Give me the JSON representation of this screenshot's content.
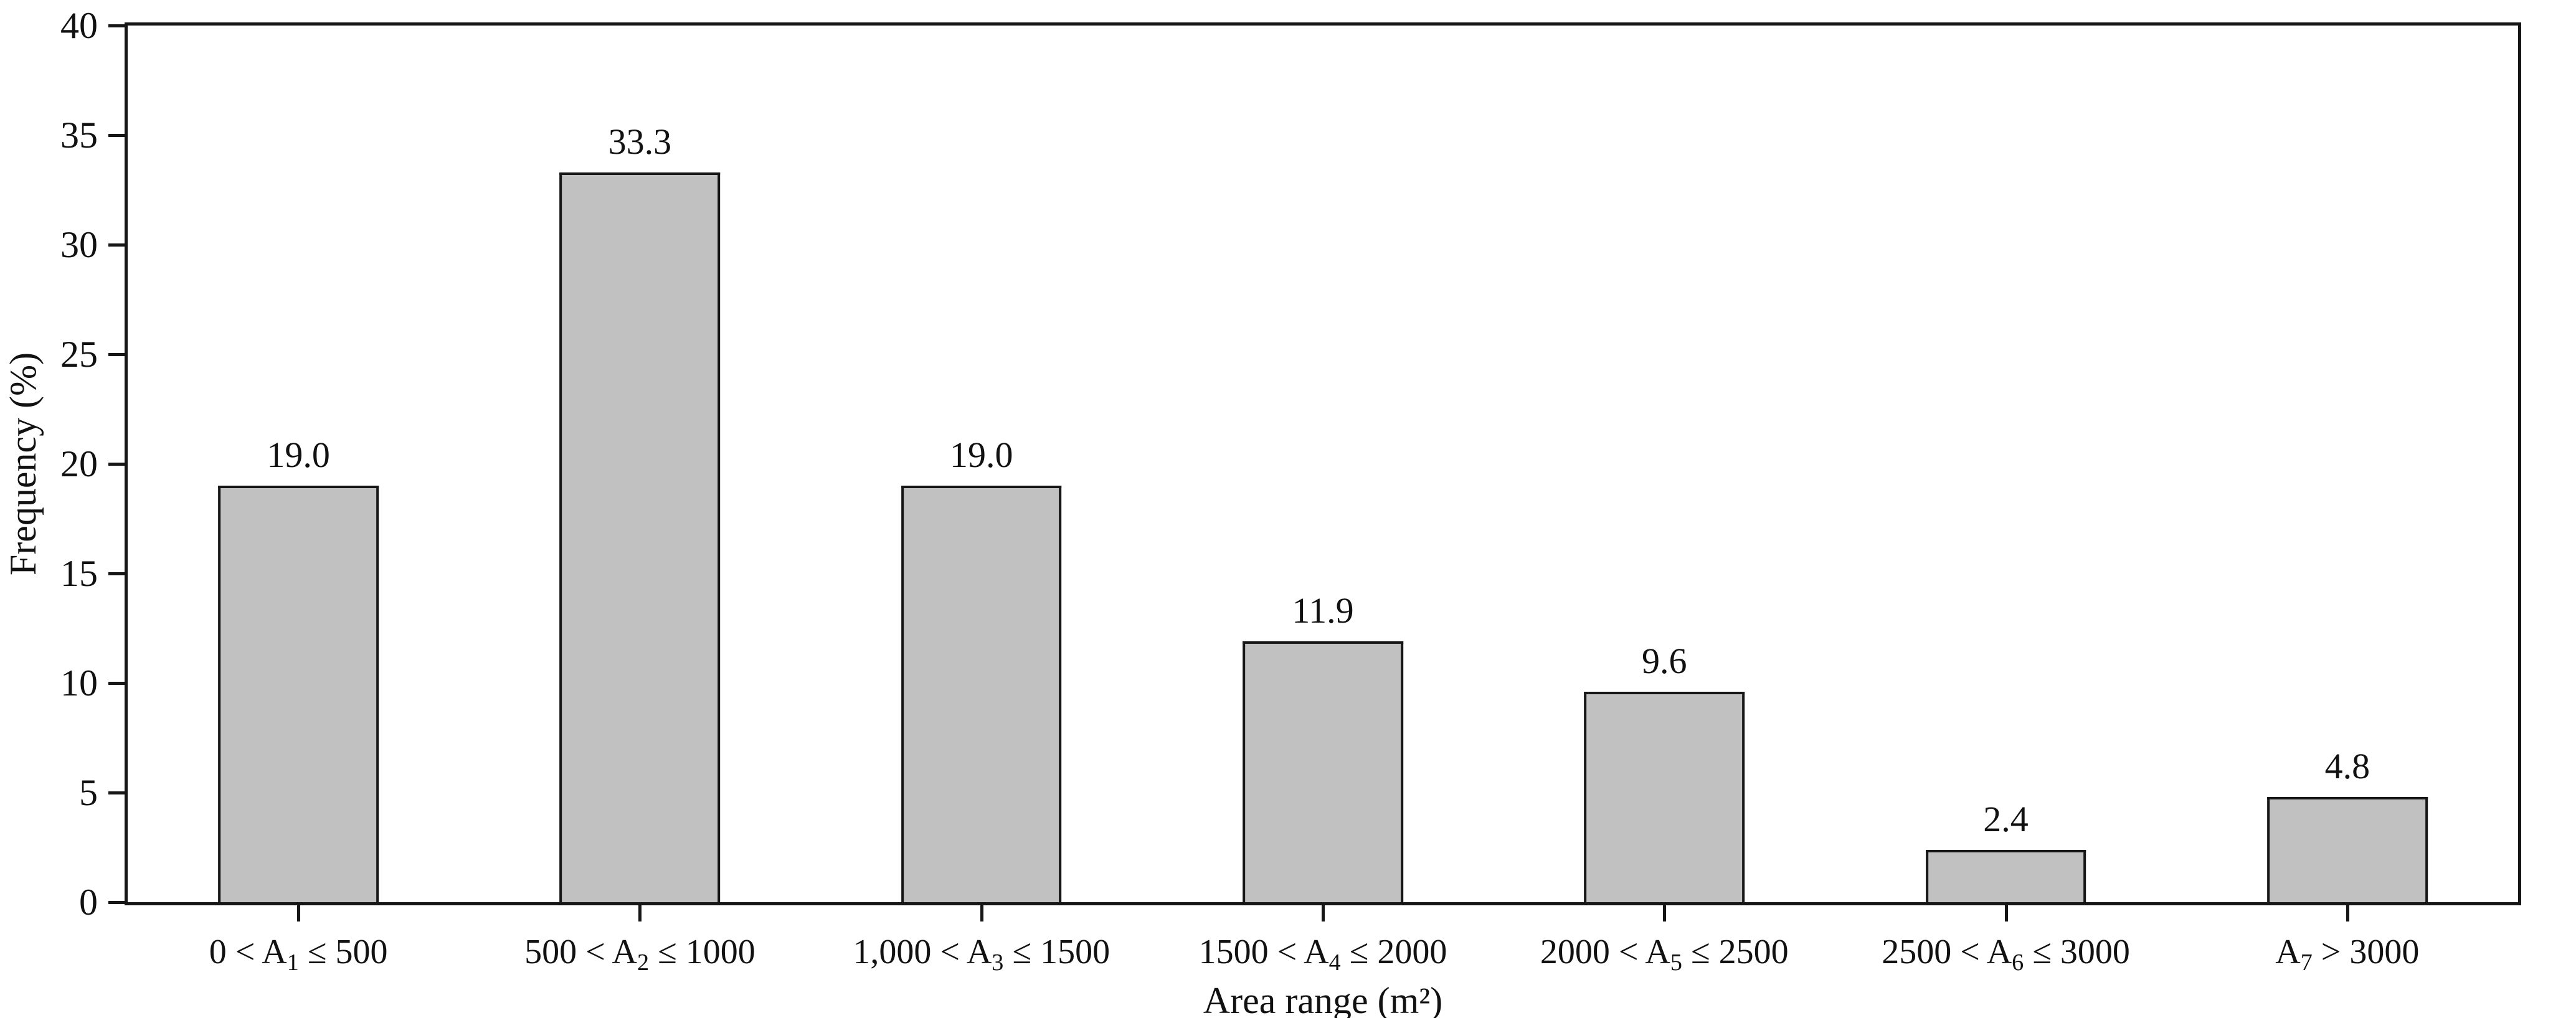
{
  "chart_data": {
    "type": "bar",
    "title": "",
    "xlabel": "Area range (m²)",
    "ylabel": "Frequency (%)",
    "ylim": [
      0,
      40
    ],
    "yticks": [
      0,
      5,
      10,
      15,
      20,
      25,
      30,
      35,
      40
    ],
    "grid": false,
    "legend_position": "none",
    "categories": [
      "0 < A₁ ≤ 500",
      "500 < A₂ ≤ 1000",
      "1,000 < A₃ ≤ 1500",
      "1500 < A₄ ≤ 2000",
      "2000 < A₅ ≤ 2500",
      "2500 < A₆ ≤ 3000",
      "A₇ > 3000"
    ],
    "categories_rich": [
      {
        "pre": "0 < A",
        "sub": "1",
        "post": " ≤ 500"
      },
      {
        "pre": "500 < A",
        "sub": "2",
        "post": " ≤ 1000"
      },
      {
        "pre": "1,000 < A",
        "sub": "3",
        "post": " ≤ 1500"
      },
      {
        "pre": "1500 < A",
        "sub": "4",
        "post": " ≤ 2000"
      },
      {
        "pre": "2000 < A",
        "sub": "5",
        "post": " ≤ 2500"
      },
      {
        "pre": "2500 < A",
        "sub": "6",
        "post": " ≤ 3000"
      },
      {
        "pre": "A",
        "sub": "7",
        "post": " > 3000"
      }
    ],
    "values": [
      19.0,
      33.3,
      19.0,
      11.9,
      9.6,
      2.4,
      4.8
    ],
    "value_labels": [
      "19.0",
      "33.3",
      "19.0",
      "11.9",
      "9.6",
      "2.4",
      "4.8"
    ],
    "colors": {
      "bar_fill": "#c1c1c1",
      "bar_border": "#161616",
      "axis": "#161616",
      "text": "#111111",
      "background": "#ffffff"
    }
  }
}
